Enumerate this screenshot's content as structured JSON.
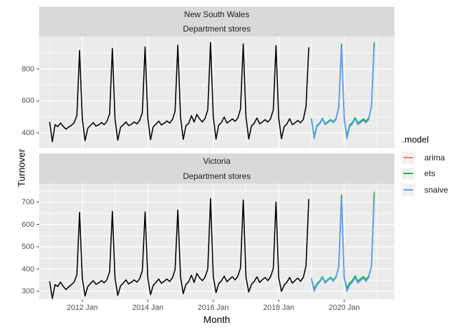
{
  "axes": {
    "y_title": "Turnover",
    "x_title": "Month"
  },
  "legend": {
    "title": ".model",
    "entries": [
      {
        "label": "arima",
        "color": "#F8766D"
      },
      {
        "label": "ets",
        "color": "#00BA38"
      },
      {
        "label": "snaive",
        "color": "#619CFF"
      }
    ]
  },
  "colors": {
    "panel_background": "#EBEBEB",
    "strip_background": "#D9D9D9",
    "grid_line": "#FFFFFF",
    "historical_line": "#000000",
    "tick_mark": "#333333",
    "tick_text": "#4d4d4d"
  },
  "chart_data": {
    "type": "line",
    "x_start": "2011 Jan",
    "x_end": "2020 Dec",
    "historical_range": "2011 Jan - 2018 Dec",
    "forecast_range": "2019 Jan - 2020 Dec",
    "x_axis": {
      "label": "Month",
      "ticks": [
        {
          "label": "2012 Jan",
          "month_index": 12
        },
        {
          "label": "2014 Jan",
          "month_index": 36
        },
        {
          "label": "2016 Jan",
          "month_index": 60
        },
        {
          "label": "2018 Jan",
          "month_index": 84
        },
        {
          "label": "2020 Jan",
          "month_index": 108
        }
      ],
      "minor_month_indexes": [
        0,
        24,
        48,
        72,
        96,
        120
      ]
    },
    "panels": [
      {
        "state": "New South Wales",
        "industry": "Department stores",
        "y_ticks": [
          400,
          600,
          800
        ],
        "y_minor": [
          500,
          700,
          900
        ],
        "ylim": [
          306,
          1005
        ],
        "historical": [
          470,
          346,
          452,
          440,
          462,
          441,
          424,
          437,
          448,
          464,
          510,
          916,
          488,
          352,
          430,
          447,
          465,
          443,
          451,
          465,
          452,
          471,
          519,
          928,
          485,
          355,
          435,
          451,
          469,
          446,
          455,
          469,
          457,
          477,
          527,
          938,
          491,
          358,
          439,
          455,
          474,
          450,
          461,
          475,
          462,
          483,
          535,
          949,
          497,
          360,
          445,
          461,
          508,
          468,
          516,
          488,
          469,
          491,
          546,
          966,
          501,
          362,
          449,
          465,
          500,
          462,
          474,
          488,
          473,
          494,
          550,
          957,
          496,
          363,
          444,
          460,
          494,
          457,
          469,
          483,
          468,
          489,
          545,
          946,
          492,
          364,
          440,
          456,
          489,
          452,
          464,
          478,
          464,
          484,
          566,
          936
        ],
        "forecasts": {
          "arima": [
            480,
            372,
            442,
            458,
            488,
            455,
            467,
            480,
            467,
            487,
            556,
            958,
            484,
            376,
            446,
            462,
            492,
            459,
            471,
            484,
            471,
            491,
            561,
            970
          ],
          "ets": [
            486,
            378,
            446,
            462,
            492,
            458,
            470,
            484,
            470,
            490,
            560,
            952,
            490,
            381,
            450,
            466,
            496,
            462,
            474,
            488,
            474,
            494,
            565,
            962
          ],
          "snaive": [
            492,
            364,
            440,
            456,
            489,
            452,
            464,
            478,
            464,
            484,
            566,
            936,
            492,
            364,
            440,
            456,
            489,
            452,
            464,
            478,
            464,
            484,
            566,
            936
          ]
        }
      },
      {
        "state": "Victoria",
        "industry": "Department stores",
        "y_ticks": [
          300,
          400,
          500,
          600,
          700
        ],
        "y_minor": [
          350,
          450,
          550,
          650,
          750
        ],
        "ylim": [
          263,
          783
        ],
        "historical": [
          345,
          268,
          330,
          322,
          341,
          322,
          308,
          320,
          330,
          342,
          375,
          654,
          358,
          279,
          322,
          335,
          348,
          331,
          338,
          348,
          338,
          352,
          388,
          659,
          356,
          282,
          324,
          337,
          351,
          333,
          341,
          351,
          341,
          356,
          392,
          656,
          359,
          285,
          327,
          340,
          355,
          336,
          345,
          355,
          344,
          360,
          396,
          665,
          363,
          290,
          331,
          344,
          372,
          340,
          380,
          360,
          348,
          364,
          401,
          716,
          366,
          294,
          334,
          347,
          368,
          343,
          355,
          365,
          351,
          368,
          405,
          710,
          363,
          297,
          331,
          344,
          365,
          340,
          352,
          362,
          348,
          365,
          402,
          701,
          360,
          300,
          328,
          341,
          362,
          337,
          349,
          359,
          345,
          362,
          414,
          714
        ],
        "forecasts": {
          "arima": [
            352,
            308,
            331,
            343,
            363,
            339,
            350,
            360,
            347,
            363,
            407,
            733,
            355,
            311,
            334,
            346,
            366,
            342,
            353,
            363,
            350,
            366,
            410,
            748
          ],
          "ets": [
            356,
            312,
            334,
            346,
            366,
            342,
            353,
            363,
            350,
            366,
            410,
            728,
            359,
            315,
            337,
            349,
            369,
            345,
            356,
            366,
            353,
            369,
            413,
            740
          ],
          "snaive": [
            360,
            300,
            328,
            341,
            362,
            337,
            349,
            359,
            345,
            362,
            414,
            714,
            360,
            300,
            328,
            341,
            362,
            337,
            349,
            359,
            345,
            362,
            414,
            714
          ]
        }
      }
    ]
  }
}
